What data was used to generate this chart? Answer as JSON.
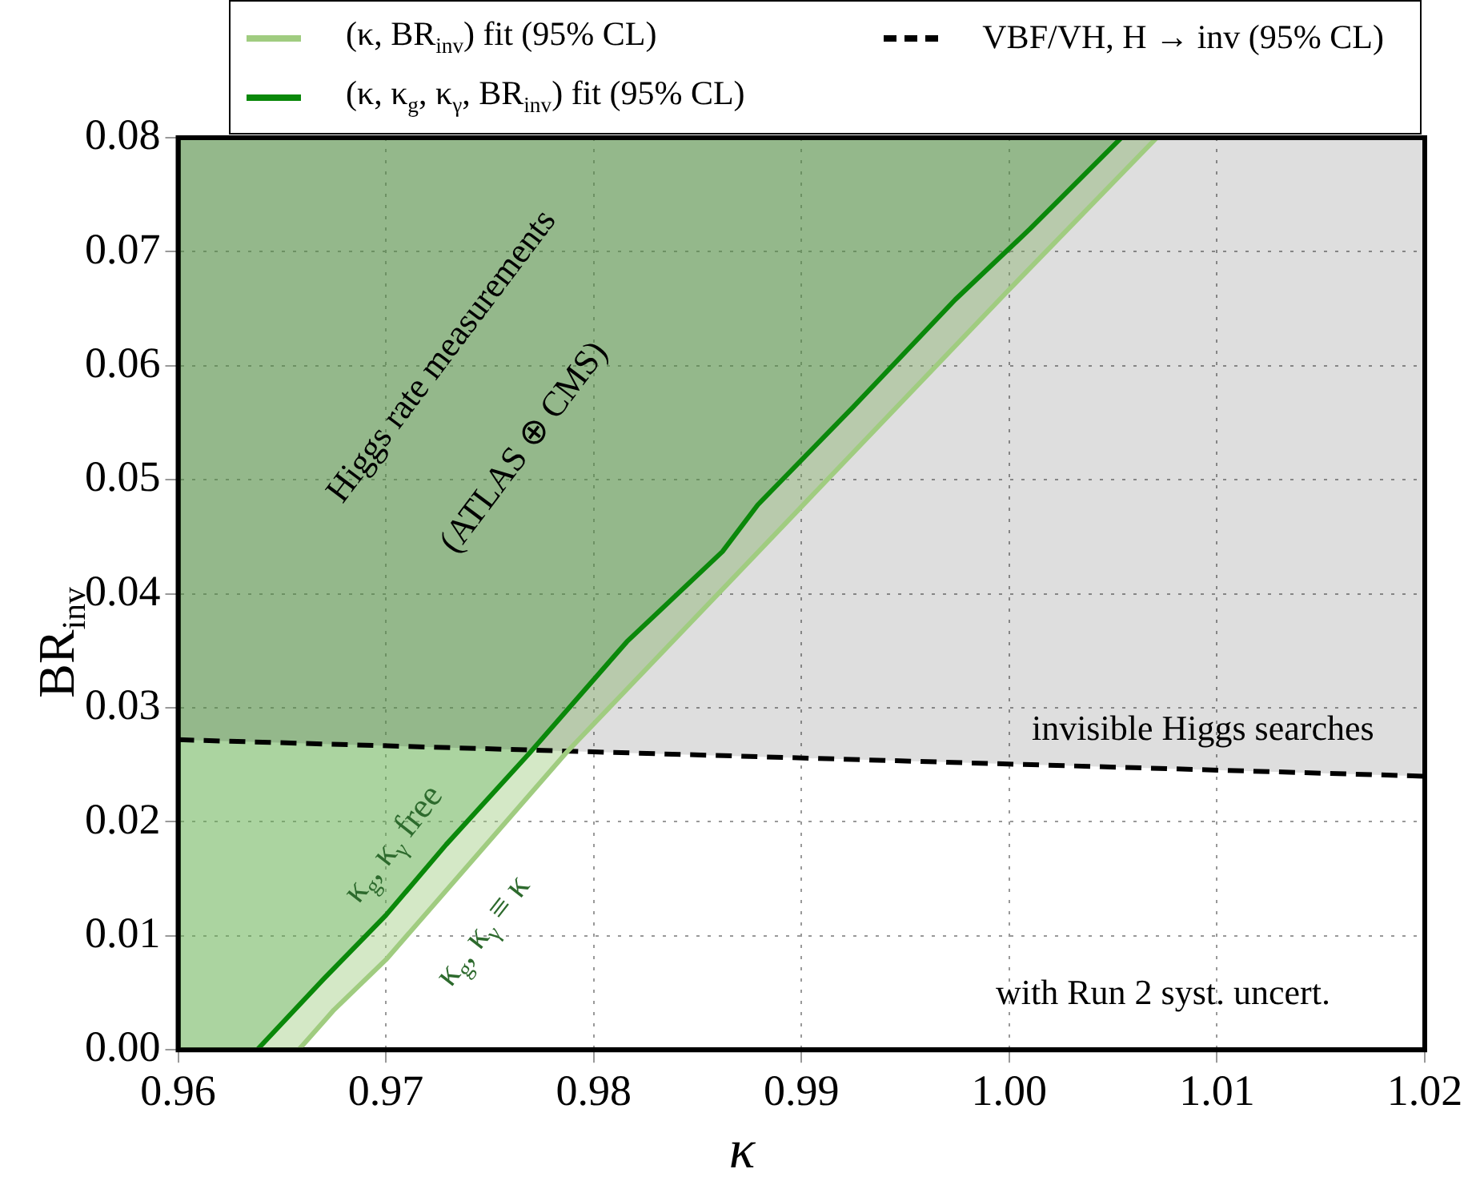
{
  "chart_data": {
    "type": "line",
    "xlabel": "κ",
    "ylabel": "BR$_{inv}$",
    "xlim": [
      0.96,
      1.02
    ],
    "xticks": [
      0.96,
      0.97,
      0.98,
      0.99,
      {
        "value": 1,
        "label": "1.00"
      },
      1.01,
      1.02
    ],
    "ylim": [
      0,
      0.08
    ],
    "yticks": [
      {
        "value": 0,
        "label": "0.00"
      },
      0.01,
      0.02,
      0.03,
      0.04,
      0.05,
      0.06,
      0.07,
      0.08
    ],
    "grid": true,
    "legend": "top",
    "marker": "none",
    "series": [
      {
        "name": "(κ, BR$_{inv}$) fit (95% CL)",
        "color": "#a0cc80",
        "x": [
          0.96,
          0.9658,
          0.9675,
          0.97,
          0.9787,
          0.9999,
          1.0071
        ],
        "values": [
          0,
          0,
          0.0035,
          0.0079,
          0.0261,
          0.0665,
          0.08
        ],
        "lower": [
          0,
          0,
          0.0035,
          0.0079,
          0.0261,
          0.0665,
          0.08
        ],
        "upper": [
          0.08,
          0.08,
          0.08,
          0.08,
          0.08,
          0.08,
          0.08
        ]
      },
      {
        "name": "(κ, κ$_{g}$, κ$_{γ}$, BR$_{inv}$) fit (95% CL)",
        "color": "#0a880a",
        "x": [
          0.96,
          0.9638,
          0.967,
          0.97,
          0.9729,
          0.9769,
          0.9816,
          0.9862,
          0.9879,
          0.9925,
          0.9974,
          1.001,
          1.0054
        ],
        "values": [
          0,
          0,
          0.0062,
          0.0118,
          0.018,
          0.026,
          0.0358,
          0.0437,
          0.0478,
          0.0564,
          0.0658,
          0.072,
          0.08
        ],
        "lower": [
          0,
          0,
          0.0062,
          0.0118,
          0.018,
          0.026,
          0.0358,
          0.0437,
          0.0478,
          0.0564,
          0.0658,
          0.072,
          0.08
        ],
        "upper": [
          0.08,
          0.08,
          0.08,
          0.08,
          0.08,
          0.08,
          0.08,
          0.08,
          0.08,
          0.08,
          0.08,
          0.08,
          0.08
        ]
      },
      {
        "name": "VBF/VH, H → inv (95% CL)",
        "color": "#000000",
        "line_style": "dashed",
        "x": [
          0.96,
          1.02
        ],
        "values": [
          0.0272,
          0.024
        ],
        "lower": [
          0.0272,
          0.024
        ],
        "upper": [
          0.08,
          0.08
        ]
      }
    ],
    "annotations": [
      "Higgs rate measurements",
      "(ATLAS ⊕ CMS)",
      "invisible Higgs searches",
      "κ$_{g}$, κ$_{γ}$ free",
      "κ$_{g}$, κ$_{γ}$ ≡ κ",
      "with Run 2 syst. uncert."
    ]
  }
}
